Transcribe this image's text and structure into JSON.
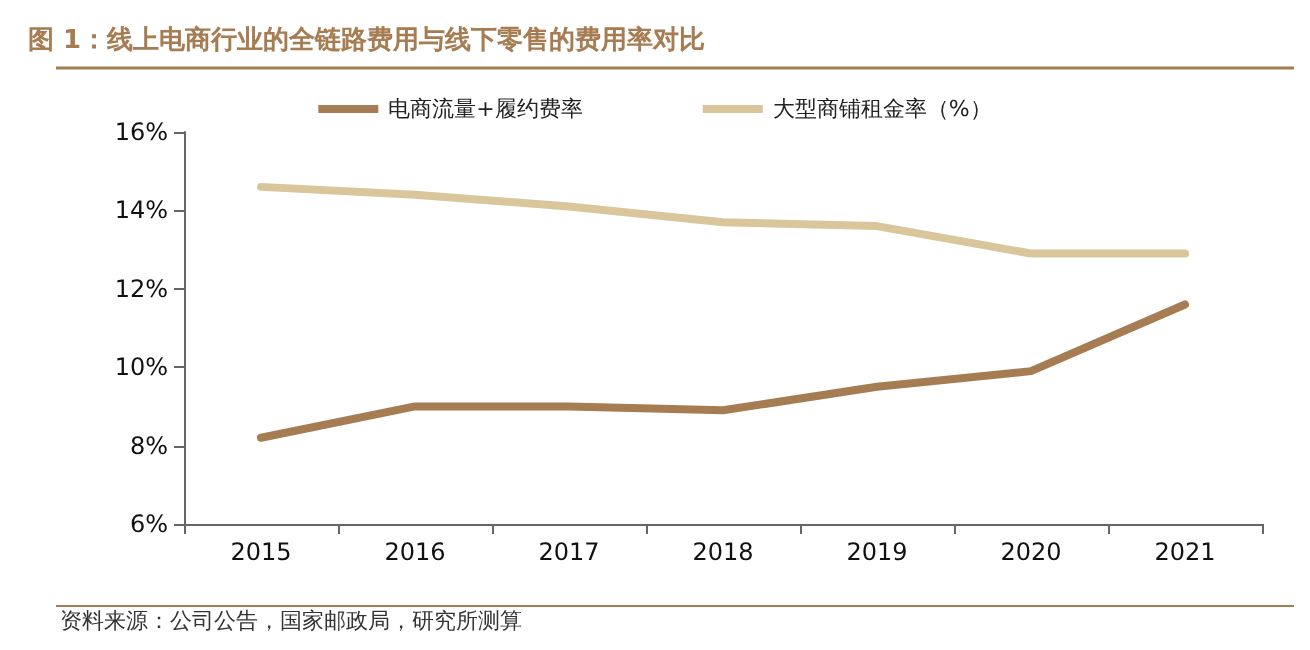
{
  "chart_data": {
    "type": "line",
    "title": "图 1：线上电商行业的全链路费用与线下零售的费用率对比",
    "categories": [
      "2015",
      "2016",
      "2017",
      "2018",
      "2019",
      "2020",
      "2021"
    ],
    "series": [
      {
        "name": "电商流量+履约费率",
        "color": "#a67c52",
        "values": [
          8.2,
          9.0,
          9.0,
          8.9,
          9.5,
          9.9,
          11.6
        ]
      },
      {
        "name": "大型商铺租金率（%）",
        "color": "#d9c69b",
        "values": [
          14.6,
          14.4,
          14.1,
          13.7,
          13.6,
          12.9,
          12.9
        ]
      }
    ],
    "ylim": [
      6,
      16
    ],
    "yticks": [
      {
        "value": 6,
        "label": "6%"
      },
      {
        "value": 8,
        "label": "8%"
      },
      {
        "value": 10,
        "label": "10%"
      },
      {
        "value": 12,
        "label": "12%"
      },
      {
        "value": 14,
        "label": "14%"
      },
      {
        "value": 16,
        "label": "16%"
      }
    ],
    "grid": false,
    "legend": "top",
    "marker": "none",
    "line_style": "solid",
    "annotations": [
      "资料来源：公司公告，国家邮政局，研究所测算"
    ]
  }
}
